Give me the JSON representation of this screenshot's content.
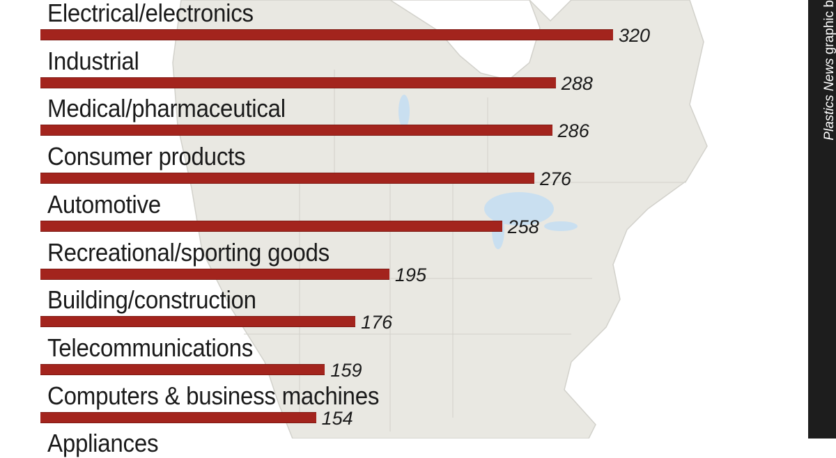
{
  "credit": {
    "source_italic": "Plastics News",
    "source_rest": " graphic b"
  },
  "colors": {
    "bar": "#a3241d",
    "map_land": "#e9e8e2",
    "map_water": "#c9dff0",
    "strip": "#1d1d1d"
  },
  "chart_data": {
    "type": "bar",
    "orientation": "horizontal",
    "title": "",
    "xlabel": "",
    "ylabel": "",
    "categories": [
      "Electrical/electronics",
      "Industrial",
      "Medical/pharmaceutical",
      "Consumer products",
      "Automotive",
      "Recreational/sporting goods",
      "Building/construction",
      "Telecommunications",
      "Computers & business machines",
      "Appliances"
    ],
    "values": [
      320,
      288,
      286,
      276,
      258,
      195,
      176,
      159,
      154,
      null
    ],
    "value_labels": [
      "320",
      "288",
      "286",
      "276",
      "258",
      "195",
      "176",
      "159",
      "154",
      ""
    ],
    "background": "map of North America"
  }
}
